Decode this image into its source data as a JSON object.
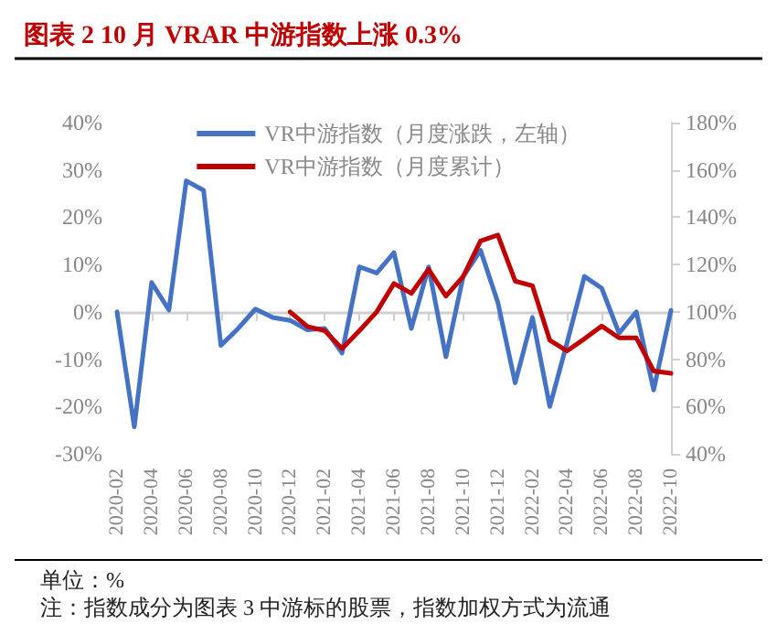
{
  "chart_data": {
    "type": "line",
    "title": "图表 2 10 月 VRAR 中游指数上涨 0.3%",
    "categories": [
      "2020-02",
      null,
      "2020-04",
      null,
      "2020-06",
      null,
      "2020-08",
      null,
      "2020-10",
      null,
      "2020-12",
      null,
      "2021-02",
      null,
      "2021-04",
      null,
      "2021-06",
      null,
      "2021-08",
      null,
      "2021-10",
      null,
      "2021-12",
      null,
      "2022-02",
      null,
      "2022-04",
      null,
      "2022-06",
      null,
      "2022-08",
      null,
      "2022-10"
    ],
    "series": [
      {
        "name": "VR中游指数（月度涨跌，左轴）",
        "color": "#4472c4",
        "values": [
          0,
          -24.3,
          6.2,
          0.4,
          27.7,
          25.7,
          -7.1,
          -3.5,
          0.6,
          -1.2,
          -1.8,
          -3.8,
          -3.5,
          -8.7,
          9.5,
          8.2,
          12.5,
          -3.5,
          9.5,
          -9.5,
          7.5,
          13,
          2,
          -15,
          -1.2,
          -20,
          -6.5,
          7.5,
          5,
          -4.5,
          0,
          -16.5,
          0.3
        ]
      },
      {
        "name": "VR中游指数（月度累计）",
        "color": "#c00000",
        "axis": "y2",
        "values": [
          null,
          null,
          null,
          null,
          null,
          null,
          null,
          null,
          null,
          null,
          100,
          93.8,
          92,
          84.5,
          92,
          100,
          112,
          107.8,
          118,
          106.7,
          115,
          130,
          132.5,
          113,
          111,
          88,
          83.5,
          88.6,
          94,
          89,
          89,
          75,
          74
        ]
      }
    ],
    "ylim": [
      -30,
      40
    ],
    "yticks": [
      {
        "value": -30,
        "label": "-30%"
      },
      {
        "value": -20,
        "label": "-20%"
      },
      {
        "value": -10,
        "label": "-10%"
      },
      {
        "value": 0,
        "label": "0%"
      },
      {
        "value": 10,
        "label": "10%"
      },
      {
        "value": 20,
        "label": "20%"
      },
      {
        "value": 30,
        "label": "30%"
      },
      {
        "value": 40,
        "label": "40%"
      }
    ],
    "y2lim": [
      40,
      180
    ],
    "y2ticks": [
      {
        "value": 40,
        "label": "40%"
      },
      {
        "value": 60,
        "label": "60%"
      },
      {
        "value": 80,
        "label": "80%"
      },
      {
        "value": 100,
        "label": "100%"
      },
      {
        "value": 120,
        "label": "120%"
      },
      {
        "value": 140,
        "label": "140%"
      },
      {
        "value": 160,
        "label": "160%"
      },
      {
        "value": 180,
        "label": "180%"
      }
    ],
    "legend": "top",
    "line_style": "solid",
    "marker": "none",
    "annotations": [
      "单位：%",
      "注：指数成分为图表 3 中游标的股票，指数加权方式为流通"
    ]
  }
}
